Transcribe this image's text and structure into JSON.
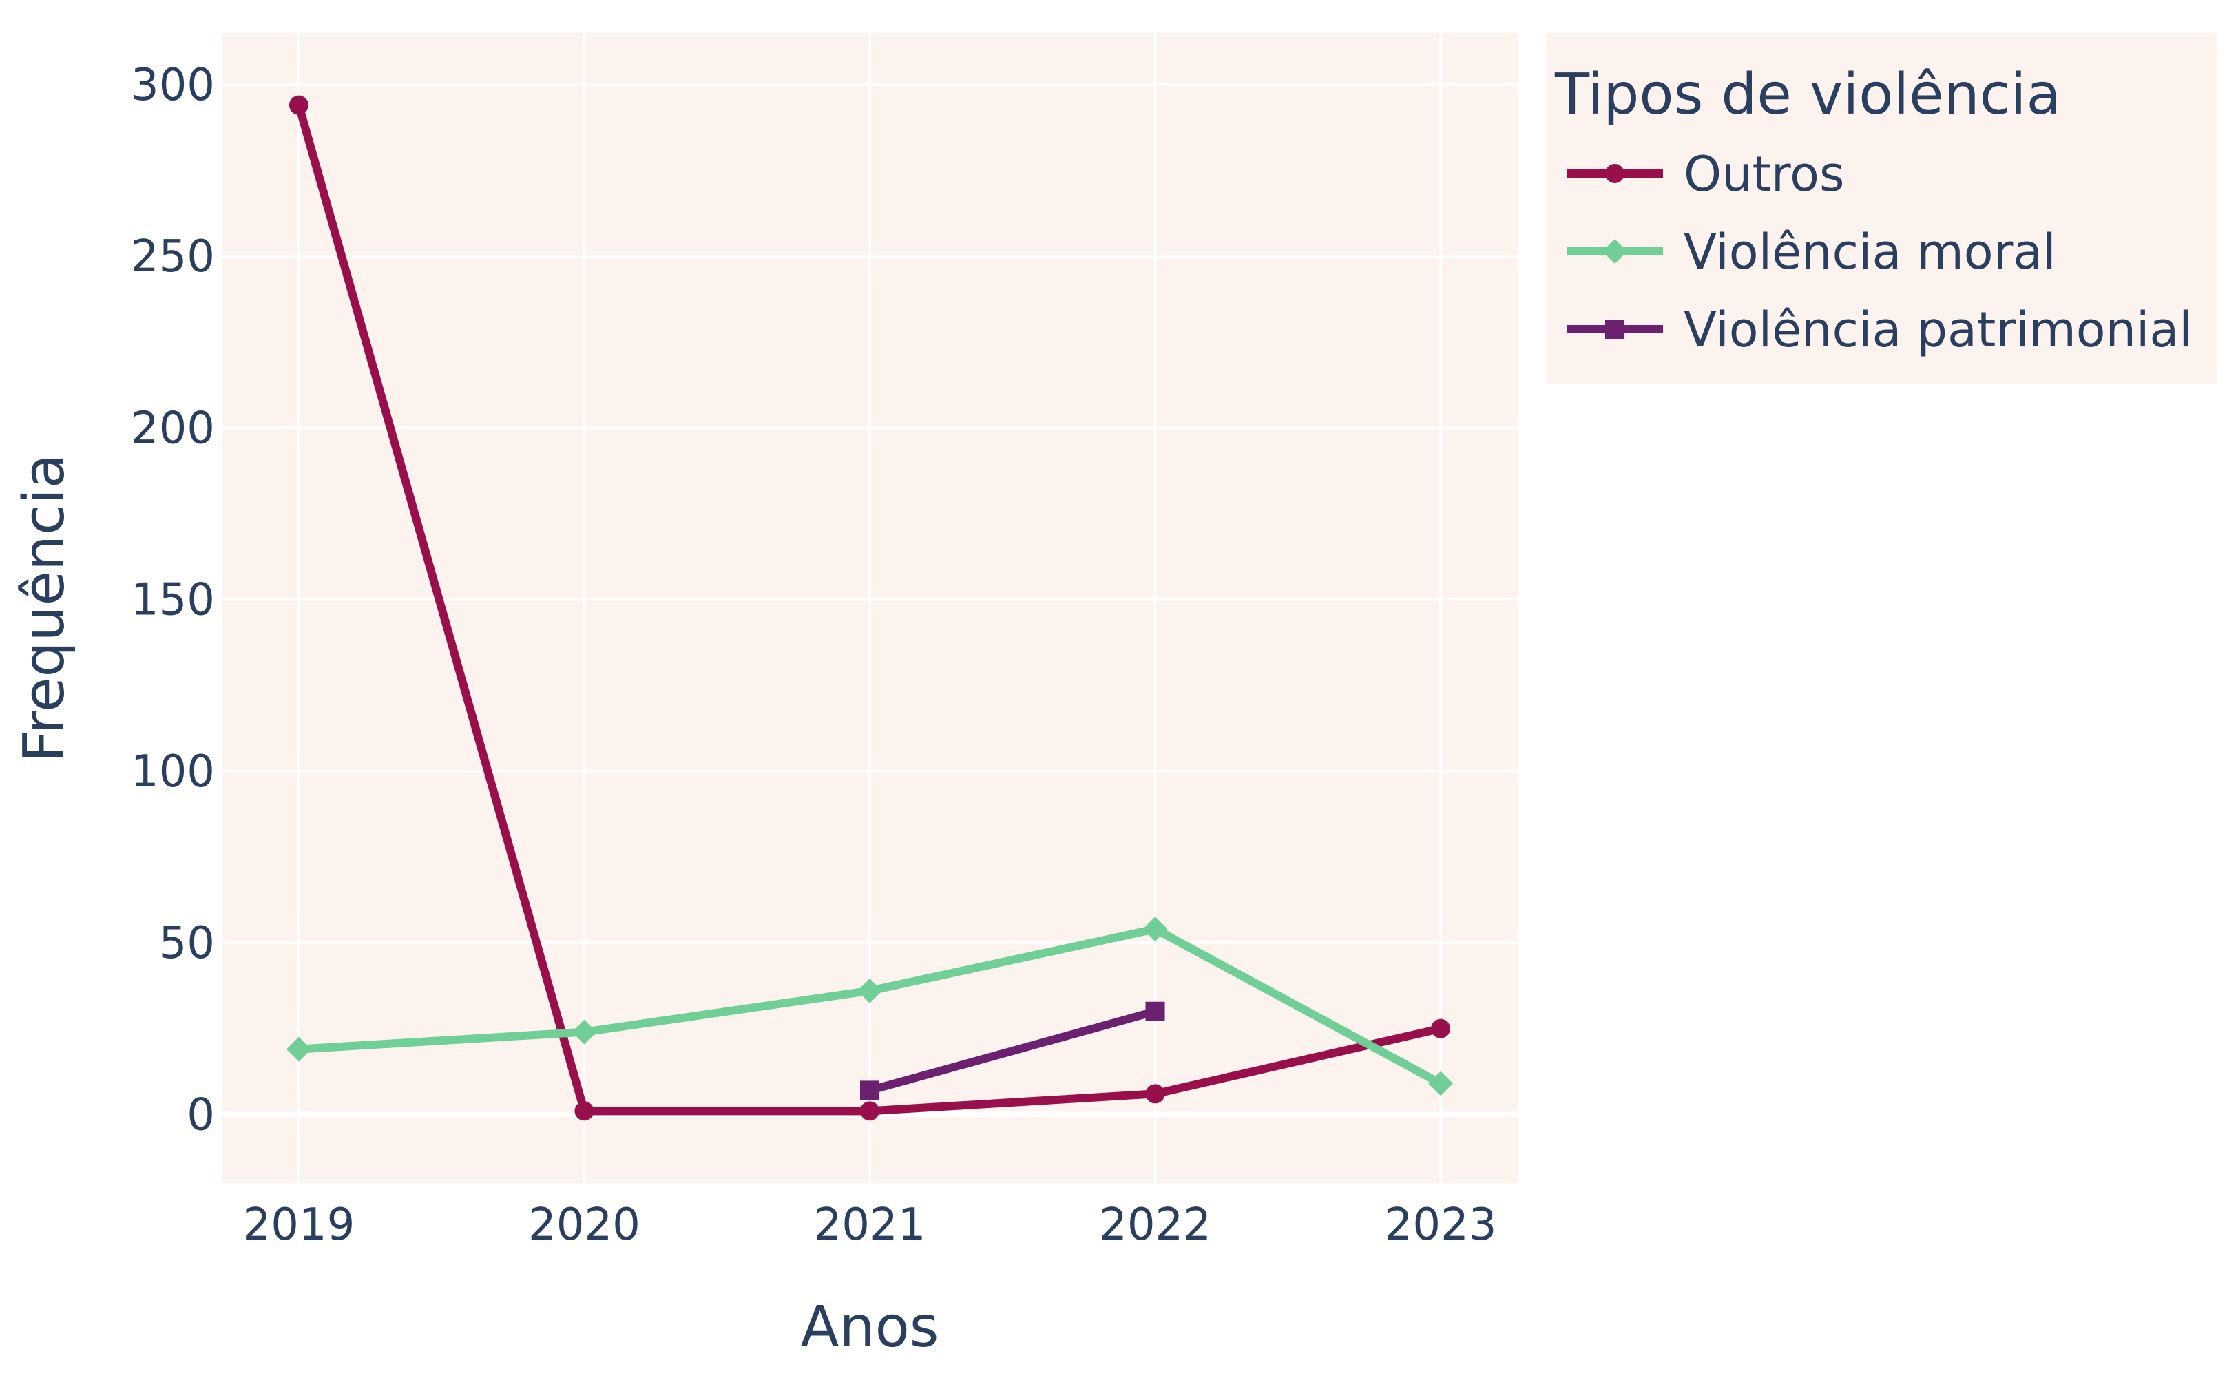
{
  "chart_data": {
    "type": "line",
    "xlabel": "Anos",
    "ylabel": "Frequência",
    "x": [
      2019,
      2020,
      2021,
      2022,
      2023
    ],
    "x_ticks": [
      "2019",
      "2020",
      "2021",
      "2022",
      "2023"
    ],
    "y_ticks": [
      "0",
      "50",
      "100",
      "150",
      "200",
      "250",
      "300"
    ],
    "ylim": [
      -20,
      315
    ],
    "xlim": [
      2018.73,
      2023.27
    ],
    "grid": true,
    "legend": {
      "title": "Tipos de violência",
      "placement": "top-right, outside plot"
    },
    "series": [
      {
        "name": "Outros",
        "color": "#990f4b",
        "marker": "circle",
        "points": [
          [
            2019,
            294
          ],
          [
            2020,
            1
          ],
          [
            2021,
            1
          ],
          [
            2022,
            6
          ],
          [
            2023,
            25
          ]
        ]
      },
      {
        "name": "Violência moral",
        "color": "#6fcf97",
        "marker": "diamond",
        "points": [
          [
            2019,
            19
          ],
          [
            2020,
            24
          ],
          [
            2021,
            36
          ],
          [
            2022,
            54
          ],
          [
            2023,
            9
          ]
        ]
      },
      {
        "name": "Violência patrimonial",
        "color": "#6b2070",
        "marker": "square",
        "points": [
          [
            2021,
            7
          ],
          [
            2022,
            30
          ]
        ]
      }
    ],
    "colors": {
      "plot_background": "#fdf3ee",
      "legend_background": "#fdf3ee",
      "grid": "#ffffff",
      "text": "#2a3f5f"
    }
  }
}
